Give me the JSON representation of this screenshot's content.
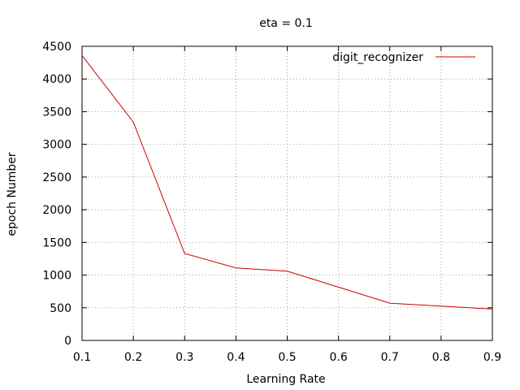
{
  "chart_data": {
    "type": "line",
    "title": "eta = 0.1",
    "xlabel": "Learning Rate",
    "ylabel": "epoch Number",
    "xlim": [
      0.1,
      0.9
    ],
    "ylim": [
      0,
      4500
    ],
    "x_ticks": [
      "0.1",
      "0.2",
      "0.3",
      "0.4",
      "0.5",
      "0.6",
      "0.7",
      "0.8",
      "0.9"
    ],
    "y_ticks": [
      "0",
      "500",
      "1000",
      "1500",
      "2000",
      "2500",
      "3000",
      "3500",
      "4000",
      "4500"
    ],
    "grid": true,
    "legend_position": "top-right",
    "series": [
      {
        "name": "digit_recognizer",
        "color": "#cc0000",
        "x": [
          0.1,
          0.2,
          0.3,
          0.4,
          0.5,
          0.7,
          0.9
        ],
        "y": [
          4360,
          3340,
          1330,
          1110,
          1060,
          570,
          480
        ]
      }
    ]
  }
}
